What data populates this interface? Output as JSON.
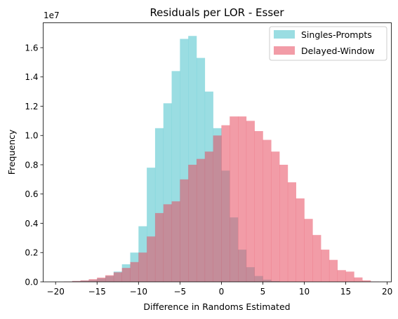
{
  "chart_data": {
    "type": "histogram",
    "title": "Residuals per LOR - Esser",
    "xlabel": "Difference in Randoms Estimated",
    "ylabel": "Frequency",
    "y_scale_label": "1e7",
    "xlim": [
      -21.5,
      20.5
    ],
    "ylim": [
      0,
      17700000
    ],
    "x_ticks": [
      -20,
      -15,
      -10,
      -5,
      0,
      5,
      10,
      15,
      20
    ],
    "y_ticks": [
      0,
      2000000,
      4000000,
      6000000,
      8000000,
      10000000,
      12000000,
      14000000,
      16000000
    ],
    "y_tick_labels": [
      "0.0",
      "0.2",
      "0.4",
      "0.6",
      "0.8",
      "1.0",
      "1.2",
      "1.4",
      "1.6"
    ],
    "grid": false,
    "legend_position": "upper right",
    "bin_width": 1,
    "bin_edges_start": -20,
    "series": [
      {
        "name": "Singles-Prompts",
        "color": "#56c7cf",
        "opacity": 0.6,
        "values": [
          0,
          20000,
          50000,
          80000,
          120000,
          230000,
          400000,
          700000,
          1200000,
          2000000,
          3800000,
          7800000,
          10500000,
          12200000,
          14400000,
          16600000,
          16800000,
          15300000,
          13000000,
          10500000,
          7600000,
          4400000,
          2200000,
          1000000,
          400000,
          150000,
          50000,
          15000,
          5000,
          2000,
          0,
          0,
          0,
          0,
          0,
          0,
          0,
          0,
          0
        ]
      },
      {
        "name": "Delayed-Window",
        "color": "#e84a5f",
        "opacity": 0.55,
        "values": [
          0,
          20000,
          60000,
          100000,
          180000,
          290000,
          450000,
          650000,
          950000,
          1350000,
          2000000,
          3100000,
          4700000,
          5300000,
          5500000,
          7000000,
          8000000,
          8400000,
          8900000,
          10000000,
          10700000,
          11300000,
          11300000,
          11000000,
          10300000,
          9700000,
          8900000,
          8000000,
          6800000,
          5700000,
          4300000,
          3200000,
          2200000,
          1500000,
          800000,
          700000,
          300000,
          100000,
          20000
        ]
      }
    ]
  }
}
